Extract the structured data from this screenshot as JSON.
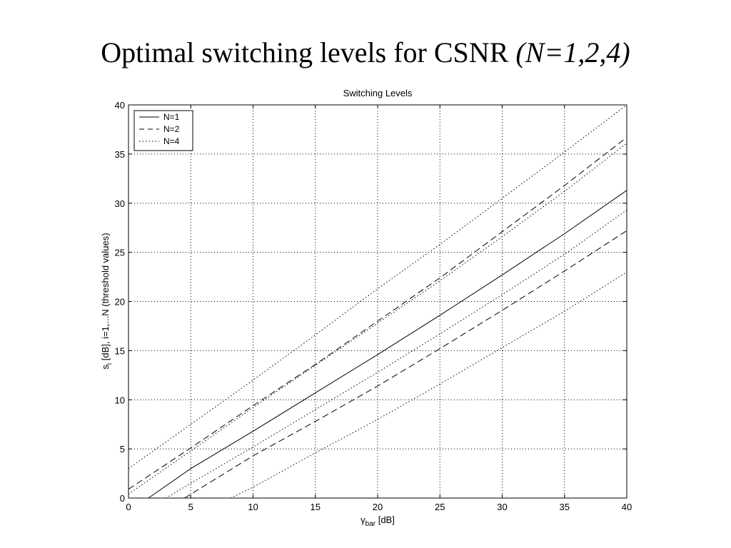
{
  "slide": {
    "title_main": "Optimal switching levels for CSNR ",
    "title_italic": "(N=1,2,4)"
  },
  "chart_data": {
    "type": "line",
    "title": "Switching Levels",
    "xlabel_main": "γ",
    "xlabel_sub": "bar",
    "xlabel_unit": " [dB]",
    "ylabel_pre": "s",
    "ylabel_sub": "i",
    "ylabel_post": " [dB], i=1,...N (threshold values)",
    "xlim": [
      0,
      40
    ],
    "ylim": [
      0,
      40
    ],
    "xticks": [
      0,
      5,
      10,
      15,
      20,
      25,
      30,
      35,
      40
    ],
    "yticks": [
      0,
      5,
      10,
      15,
      20,
      25,
      30,
      35,
      40
    ],
    "grid": true,
    "legend_position": "top-left",
    "legend": [
      {
        "label": "N=1",
        "style": "solid"
      },
      {
        "label": "N=2",
        "style": "dashed"
      },
      {
        "label": "N=4",
        "style": "dotted"
      }
    ],
    "series": [
      {
        "name": "N=1",
        "style": "solid",
        "x": [
          1.6,
          5,
          10,
          15,
          20,
          25,
          30,
          35,
          40
        ],
        "y": [
          0,
          3.0,
          6.8,
          10.7,
          14.6,
          18.6,
          22.7,
          26.9,
          31.3
        ]
      },
      {
        "name": "N=2",
        "style": "dashed",
        "x": [
          0,
          5,
          10,
          15,
          20,
          25,
          30,
          35,
          40
        ],
        "y": [
          0.9,
          5.1,
          9.4,
          13.6,
          18.0,
          22.4,
          27.1,
          31.8,
          36.7
        ]
      },
      {
        "name": "N=2",
        "style": "dashed",
        "x": [
          4.5,
          10,
          15,
          20,
          25,
          30,
          35,
          40
        ],
        "y": [
          0,
          4.3,
          7.8,
          11.4,
          15.2,
          19.1,
          23.1,
          27.2
        ]
      },
      {
        "name": "N=4",
        "style": "dotted",
        "x": [
          0,
          5,
          10,
          15,
          20,
          25,
          30,
          35,
          40
        ],
        "y": [
          3.0,
          7.5,
          12.0,
          16.6,
          21.3,
          25.8,
          30.5,
          35.2,
          40.0
        ]
      },
      {
        "name": "N=4",
        "style": "dotted",
        "x": [
          0,
          5,
          10,
          15,
          20,
          25,
          30,
          35,
          40
        ],
        "y": [
          0.4,
          4.8,
          9.2,
          13.5,
          17.8,
          22.1,
          26.6,
          31.2,
          36.1
        ]
      },
      {
        "name": "N=4",
        "style": "dotted",
        "x": [
          3.0,
          5,
          10,
          15,
          20,
          25,
          30,
          35,
          40
        ],
        "y": [
          0,
          1.5,
          5.2,
          9.0,
          12.8,
          16.7,
          20.7,
          24.8,
          29.3
        ]
      },
      {
        "name": "N=4",
        "style": "dotted",
        "x": [
          8.2,
          10,
          15,
          20,
          25,
          30,
          35,
          40
        ],
        "y": [
          0,
          1.1,
          4.6,
          8.0,
          11.6,
          15.3,
          19.0,
          23.0
        ]
      }
    ]
  }
}
